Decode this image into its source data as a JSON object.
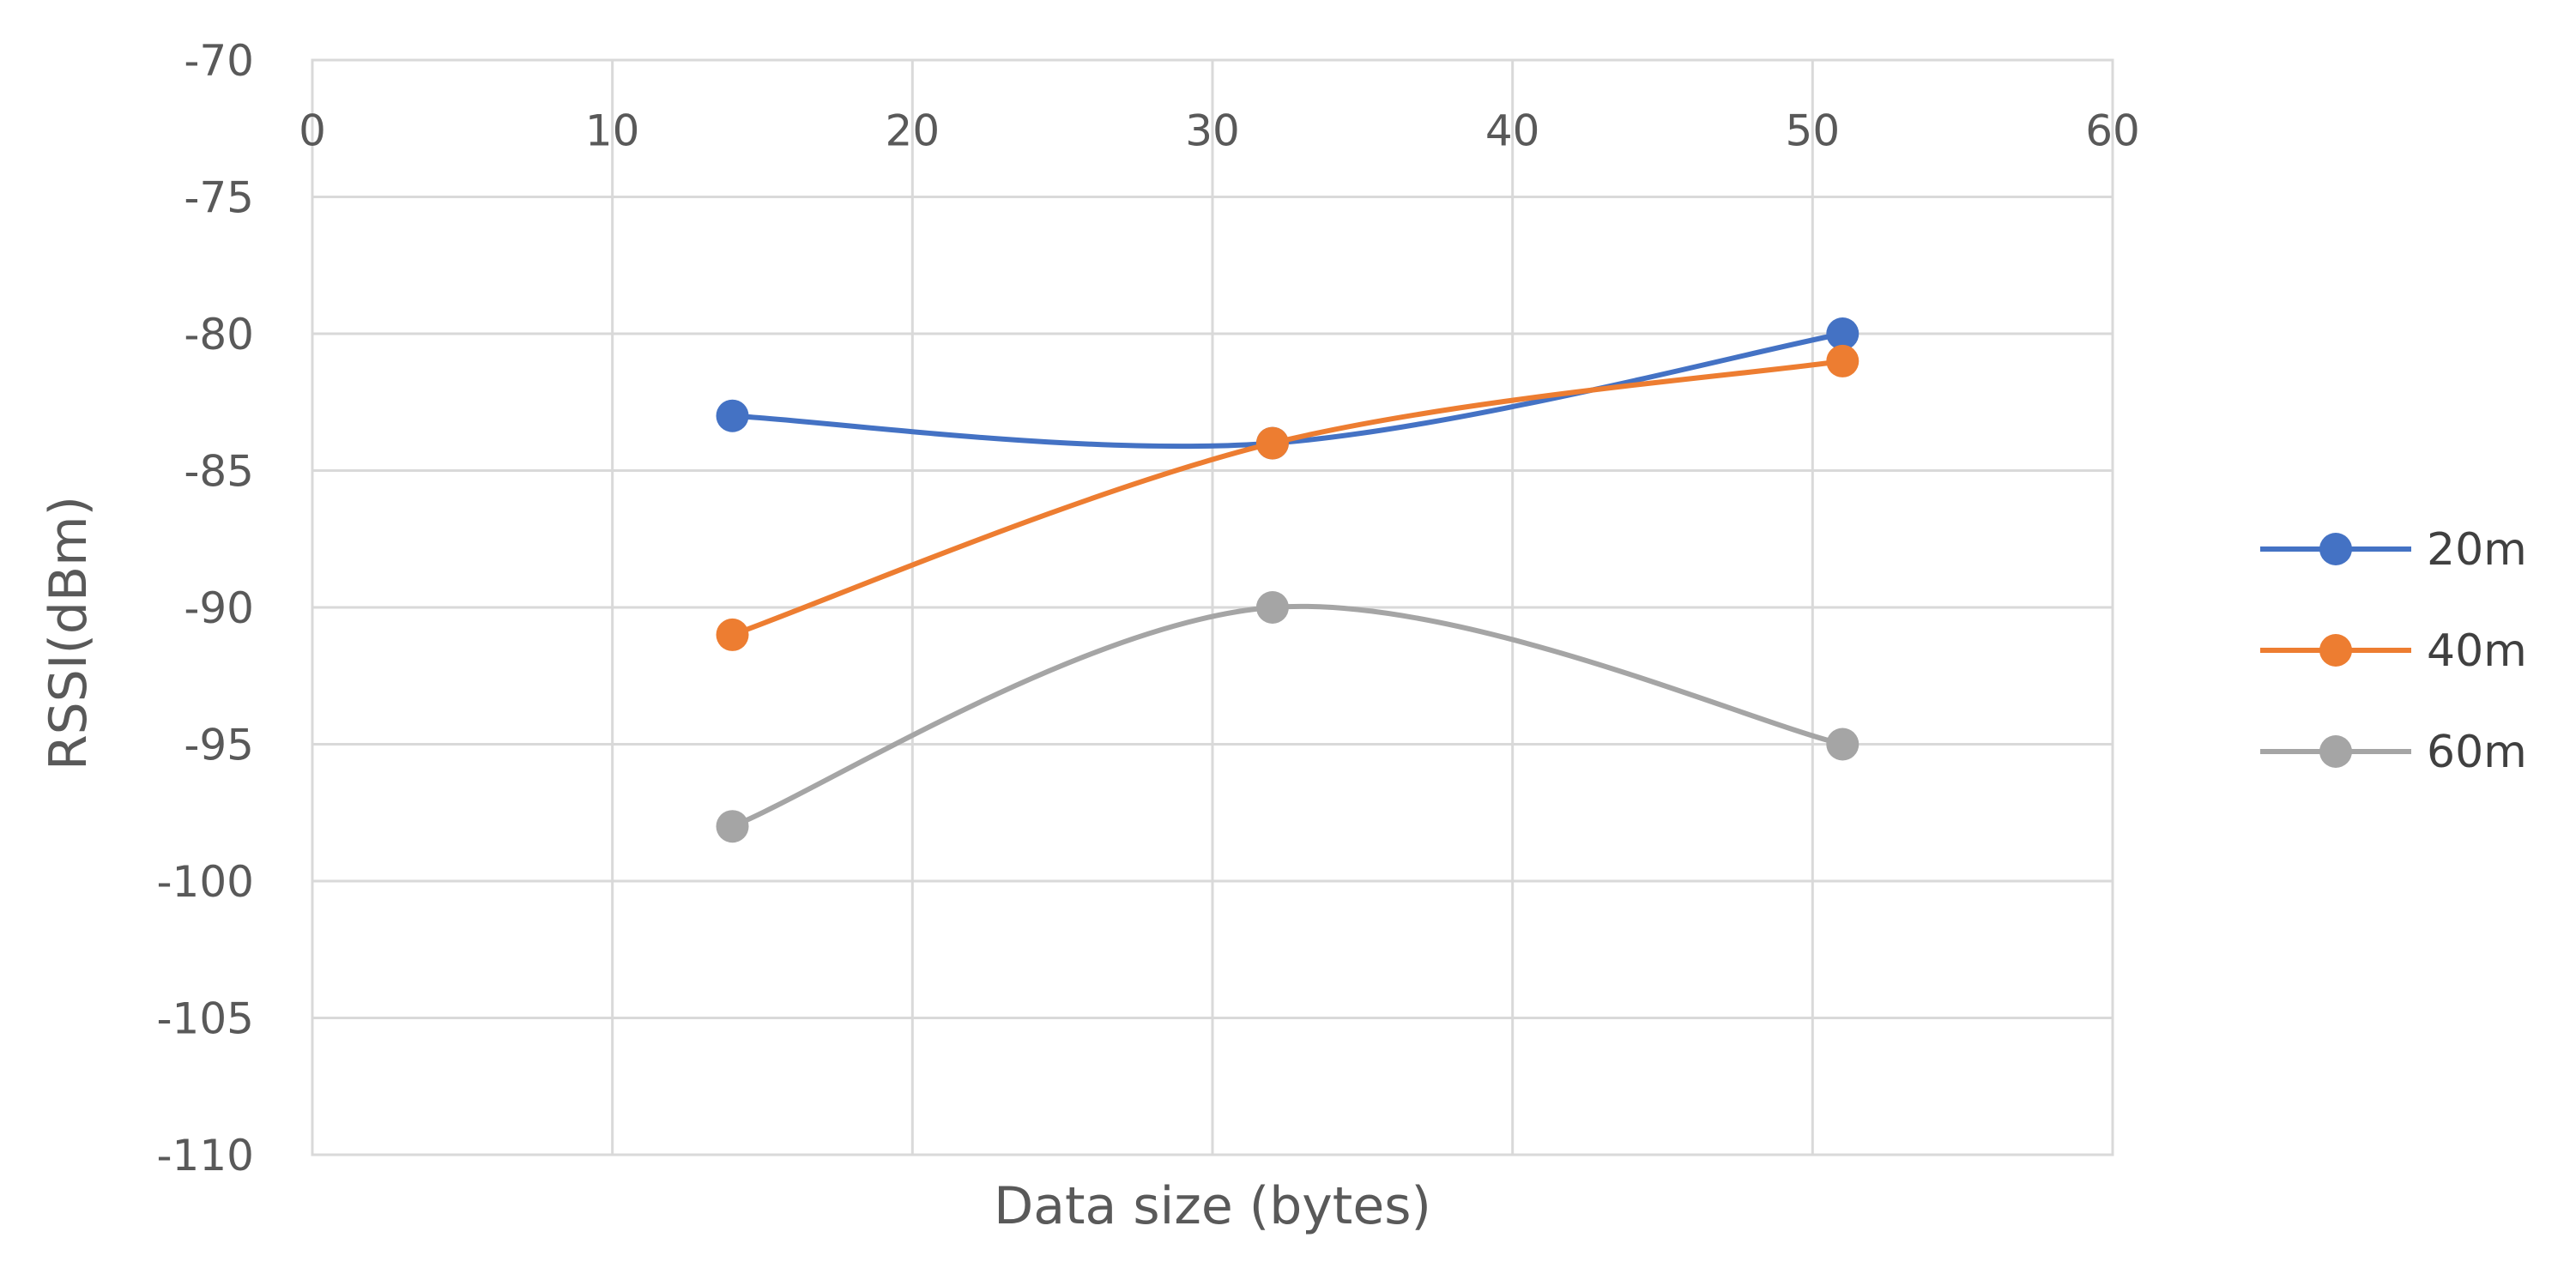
{
  "chart_data": {
    "type": "line",
    "title": "",
    "xlabel": "Data size (bytes)",
    "ylabel": "RSSI(dBm)",
    "xlim": [
      0,
      60
    ],
    "ylim": [
      -110,
      -70
    ],
    "xticks": [
      0,
      10,
      20,
      30,
      40,
      50,
      60
    ],
    "yticks": [
      -70,
      -75,
      -80,
      -85,
      -90,
      -95,
      -100,
      -105,
      -110
    ],
    "x_axis_position": "top",
    "grid": true,
    "smooth": true,
    "legend_position": "right",
    "series": [
      {
        "name": "20m",
        "color": "#4472C4",
        "x": [
          14,
          32,
          51
        ],
        "y": [
          -83,
          -84,
          -80
        ]
      },
      {
        "name": "40m",
        "color": "#ED7D31",
        "x": [
          14,
          32,
          51
        ],
        "y": [
          -91,
          -84,
          -81
        ]
      },
      {
        "name": "60m",
        "color": "#A5A5A5",
        "x": [
          14,
          32,
          51
        ],
        "y": [
          -98,
          -90,
          -95
        ]
      }
    ]
  }
}
